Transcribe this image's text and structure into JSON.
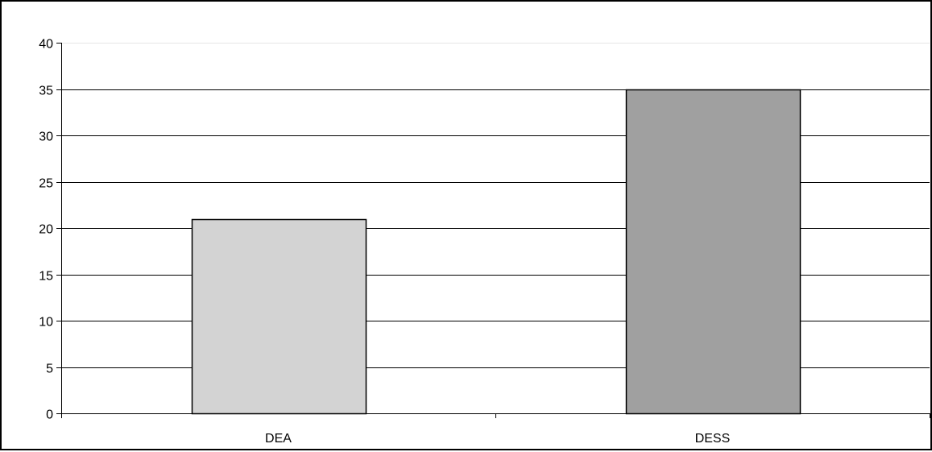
{
  "chart_data": {
    "type": "bar",
    "categories": [
      "DEA",
      "DESS"
    ],
    "values": [
      21,
      35
    ],
    "bar_colors": [
      "#d3d3d3",
      "#a0a0a0"
    ],
    "ylim": [
      0,
      40
    ],
    "yticks": [
      0,
      5,
      10,
      15,
      20,
      25,
      30,
      35,
      40
    ],
    "grid": true,
    "title": "",
    "xlabel": "",
    "ylabel": ""
  }
}
